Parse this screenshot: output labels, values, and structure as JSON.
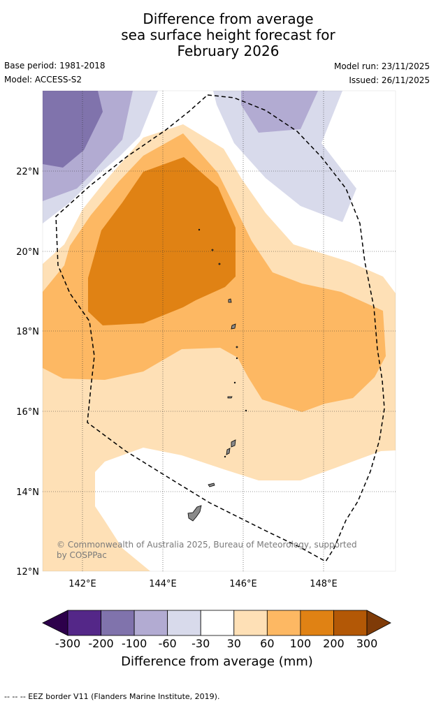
{
  "title": {
    "line1": "Difference from average",
    "line2": "sea surface height forecast for",
    "line3": "February 2026"
  },
  "metadata": {
    "base_period": "Base period: 1981-2018",
    "model": "Model: ACCESS-S2",
    "model_run": "Model run: 23/11/2025",
    "issued": "Issued: 26/11/2025"
  },
  "map": {
    "lat_labels": [
      "22°N",
      "20°N",
      "18°N",
      "16°N",
      "14°N",
      "12°N"
    ],
    "lon_labels": [
      "142°E",
      "144°E",
      "146°E",
      "148°E"
    ],
    "credit": "© Commonwealth of Australia 2025, Bureau of Meteorology, supported by COSPPac"
  },
  "colorbar": {
    "ticks": [
      "-300",
      "-200",
      "-100",
      "-60",
      "-30",
      "30",
      "60",
      "100",
      "200",
      "300"
    ],
    "colors": [
      "#2d004b",
      "#542788",
      "#8073ac",
      "#b2abd2",
      "#d8daeb",
      "#ffffff",
      "#fee0b6",
      "#fdb863",
      "#e08214",
      "#b35806",
      "#7f3b08"
    ],
    "title": "Difference from average (mm)"
  },
  "footnote": "--  --  -- EEZ border V11 (Flanders Marine Institute, 2019)."
}
